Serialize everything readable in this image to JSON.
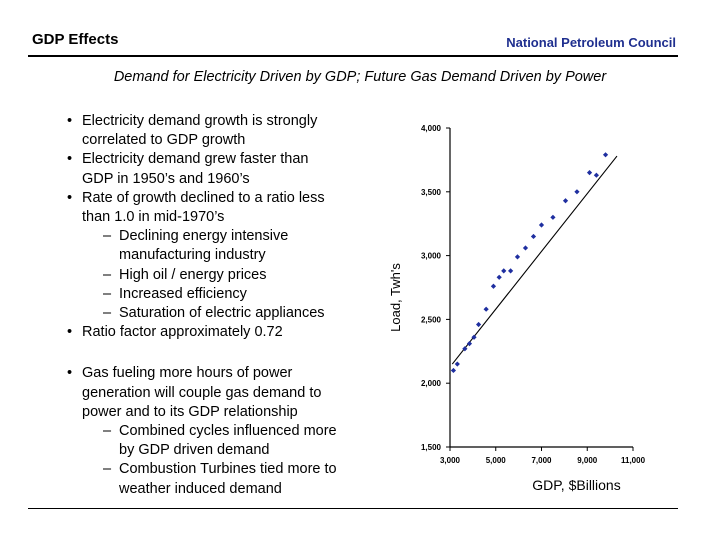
{
  "header": {
    "left_title": "GDP Effects",
    "right_title": "National Petroleum Council"
  },
  "subtitle": "Demand for Electricity Driven by GDP; Future Gas Demand Driven by Power",
  "bullets_group1": [
    {
      "level": 1,
      "text": "Electricity demand growth is strongly"
    },
    {
      "level": 0,
      "text": "correlated to GDP growth"
    },
    {
      "level": 1,
      "text": "Electricity demand grew faster than"
    },
    {
      "level": 0,
      "text": "GDP in 1950’s and 1960’s"
    },
    {
      "level": 1,
      "text": "Rate of growth declined to a ratio less"
    },
    {
      "level": 0,
      "text": "than 1.0 in mid-1970’s"
    },
    {
      "level": 2,
      "text": "Declining energy intensive"
    },
    {
      "level": 3,
      "text": "manufacturing industry"
    },
    {
      "level": 2,
      "text": "High oil / energy prices"
    },
    {
      "level": 2,
      "text": "Increased efficiency"
    },
    {
      "level": 2,
      "text": "Saturation of electric appliances"
    },
    {
      "level": 1,
      "text": "Ratio factor approximately 0.72"
    }
  ],
  "bullets_group2": [
    {
      "level": 1,
      "text": "Gas fueling more hours of power"
    },
    {
      "level": 0,
      "text": "generation will couple gas demand to"
    },
    {
      "level": 0,
      "text": "power and to its GDP relationship"
    },
    {
      "level": 2,
      "text": "Combined cycles influenced more"
    },
    {
      "level": 3,
      "text": "by GDP driven demand"
    },
    {
      "level": 2,
      "text": "Combustion Turbines tied more to"
    },
    {
      "level": 3,
      "text": "weather induced demand"
    }
  ],
  "chart_data": {
    "type": "scatter",
    "title": "",
    "xlabel": "GDP, $Billions",
    "ylabel": "Load, Twh's",
    "xlim": [
      3000,
      11000
    ],
    "ylim": [
      1500,
      4000
    ],
    "xticks": [
      "3,000",
      "5,000",
      "7,000",
      "9,000",
      "11,000"
    ],
    "yticks": [
      "1,500",
      "2,000",
      "2,500",
      "3,000",
      "3,500",
      "4,000"
    ],
    "grid": false,
    "colors": {
      "points": "#1f2fa0",
      "trend": "#000000"
    },
    "trendline": {
      "x": [
        3100,
        10300
      ],
      "y": [
        2150,
        3780
      ]
    },
    "points": [
      {
        "x": 3150,
        "y": 2100
      },
      {
        "x": 3320,
        "y": 2150
      },
      {
        "x": 3650,
        "y": 2270
      },
      {
        "x": 3850,
        "y": 2310
      },
      {
        "x": 4050,
        "y": 2360
      },
      {
        "x": 4250,
        "y": 2460
      },
      {
        "x": 4580,
        "y": 2580
      },
      {
        "x": 4900,
        "y": 2760
      },
      {
        "x": 5150,
        "y": 2830
      },
      {
        "x": 5350,
        "y": 2880
      },
      {
        "x": 5650,
        "y": 2880
      },
      {
        "x": 5950,
        "y": 2990
      },
      {
        "x": 6300,
        "y": 3060
      },
      {
        "x": 6650,
        "y": 3150
      },
      {
        "x": 7000,
        "y": 3240
      },
      {
        "x": 7500,
        "y": 3300
      },
      {
        "x": 8050,
        "y": 3430
      },
      {
        "x": 8550,
        "y": 3500
      },
      {
        "x": 9100,
        "y": 3650
      },
      {
        "x": 9400,
        "y": 3630
      },
      {
        "x": 9800,
        "y": 3790
      }
    ]
  }
}
